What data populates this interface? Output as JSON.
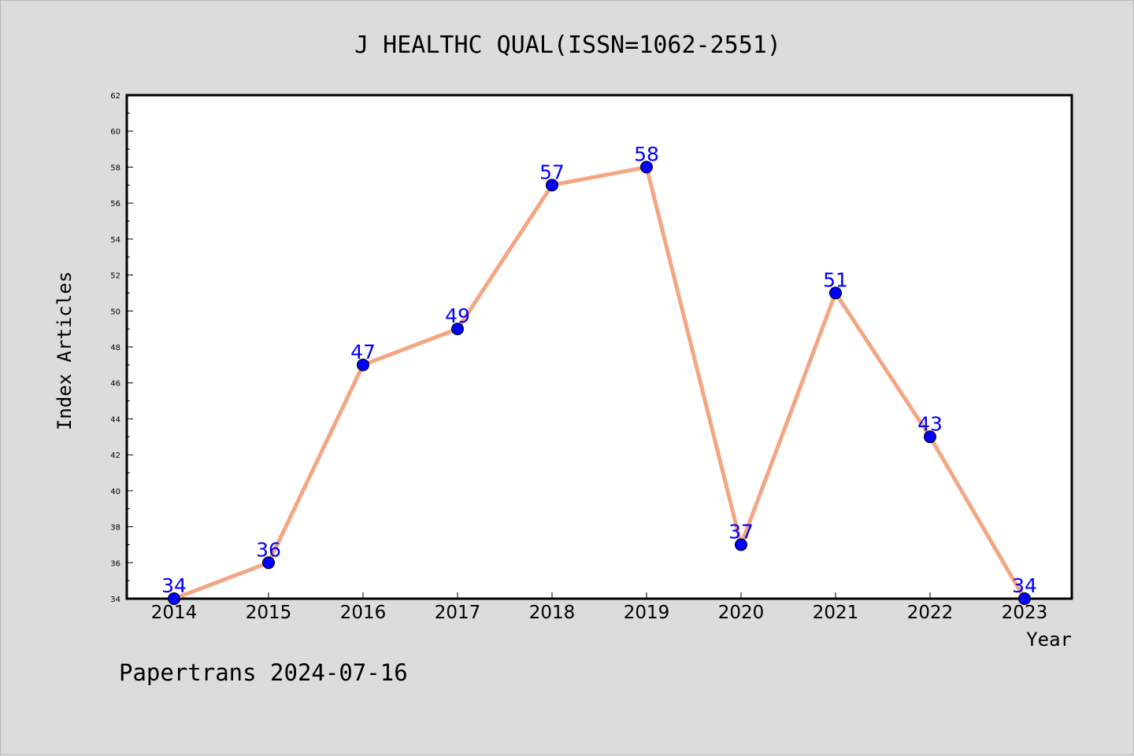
{
  "chart_data": {
    "type": "line",
    "title": "J HEALTHC QUAL(ISSN=1062-2551)",
    "xlabel": "Year",
    "ylabel": "Index Articles",
    "x": [
      "2014",
      "2015",
      "2016",
      "2017",
      "2018",
      "2019",
      "2020",
      "2021",
      "2022",
      "2023"
    ],
    "series": [
      {
        "values": [
          34,
          36,
          47,
          49,
          57,
          58,
          37,
          51,
          43,
          34
        ]
      }
    ],
    "ylim": [
      34,
      62
    ],
    "yticks": [
      "34",
      "36",
      "38",
      "40",
      "42",
      "44",
      "46",
      "48",
      "50",
      "52",
      "54",
      "56",
      "58",
      "60",
      "62"
    ],
    "grid": false,
    "line_color": "#f4a582",
    "marker_color": "#0000ff",
    "label_color": "#0000ff"
  },
  "footer": "Papertrans 2024-07-16"
}
